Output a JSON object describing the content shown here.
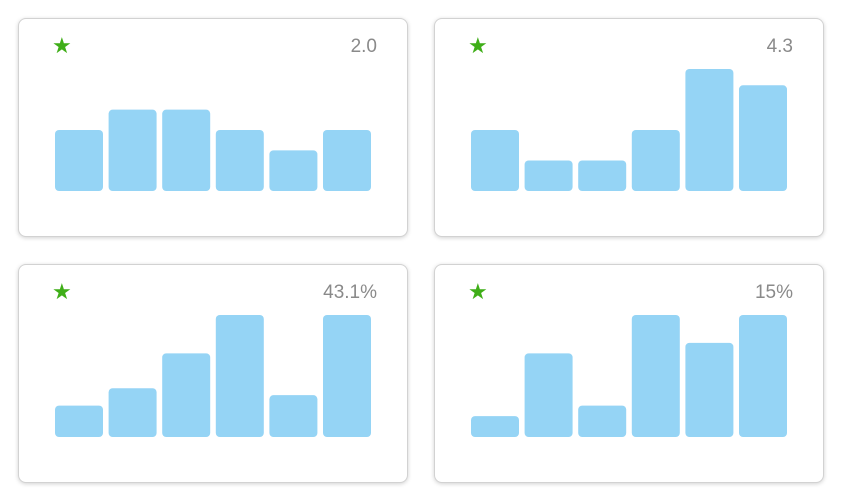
{
  "colors": {
    "bar": "#95d4f5",
    "star": "#3fae18",
    "metric_text": "#8a8a8a"
  },
  "icons": {
    "star": "★"
  },
  "chart_data": [
    {
      "type": "bar",
      "metric_label": "2.0",
      "values": [
        3,
        4,
        4,
        3,
        2,
        3
      ],
      "ylim": [
        0,
        6
      ]
    },
    {
      "type": "bar",
      "metric_label": "4.3",
      "values": [
        3,
        1.5,
        1.5,
        3,
        6,
        5.2
      ],
      "ylim": [
        0,
        6
      ]
    },
    {
      "type": "bar",
      "metric_label": "43.1%",
      "values": [
        0.9,
        1.4,
        2.4,
        3.5,
        1.2,
        3.5
      ],
      "ylim": [
        0,
        3.5
      ]
    },
    {
      "type": "bar",
      "metric_label": "15%",
      "values": [
        0.6,
        2.4,
        0.9,
        3.5,
        2.7,
        3.5
      ],
      "ylim": [
        0,
        3.5
      ]
    }
  ]
}
